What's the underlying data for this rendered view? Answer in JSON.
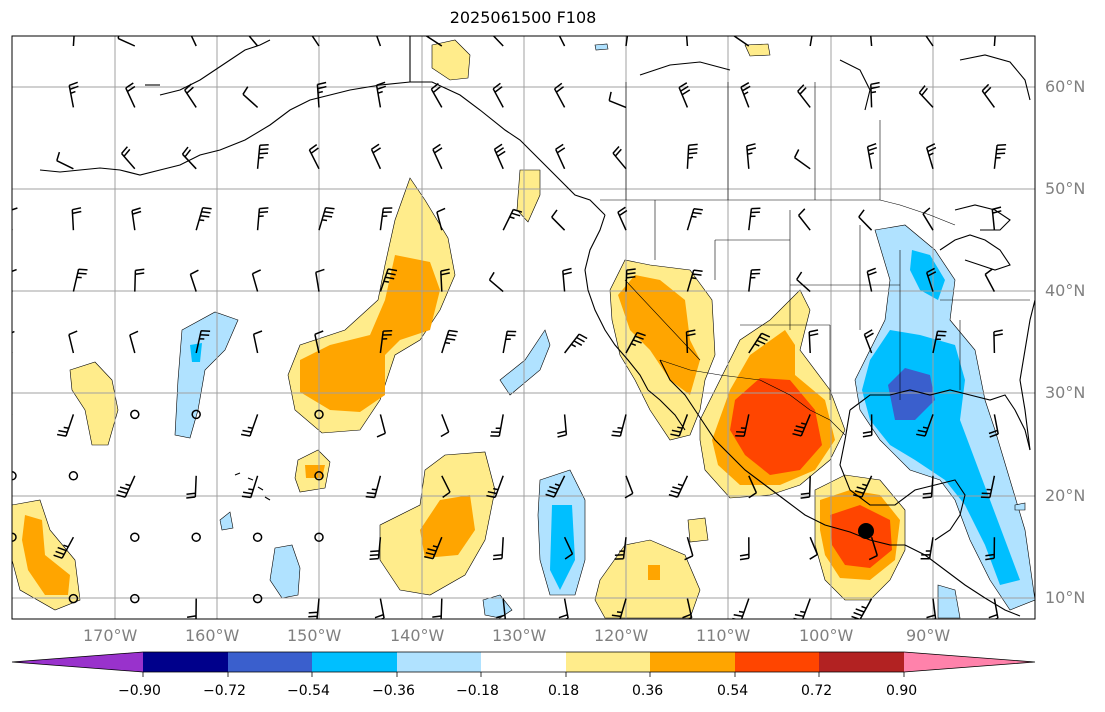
{
  "title": "2025061500 F108",
  "lon_labels": [
    "170°W",
    "160°W",
    "150°W",
    "140°W",
    "130°W",
    "120°W",
    "110°W",
    "100°W",
    "90°W"
  ],
  "lat_labels": [
    "60°N",
    "50°N",
    "40°N",
    "30°N",
    "20°N",
    "10°N"
  ],
  "colorbar": {
    "ticks": [
      "−0.90",
      "−0.72",
      "−0.54",
      "−0.36",
      "−0.18",
      "0.18",
      "0.36",
      "0.54",
      "0.72",
      "0.90"
    ],
    "colors": [
      "#9932cc",
      "#00008b",
      "#3a5fcd",
      "#00bfff",
      "#b0e2ff",
      "#ffffff",
      "#ffec8b",
      "#ffa500",
      "#ff4500",
      "#b22222",
      "#ff82ab"
    ]
  },
  "map": {
    "extent": {
      "lon_min": -180,
      "lon_max": -80,
      "lat_min": 8,
      "lat_max": 65
    },
    "storm_center": {
      "lon": -95.2,
      "lat": 16.5
    }
  }
}
